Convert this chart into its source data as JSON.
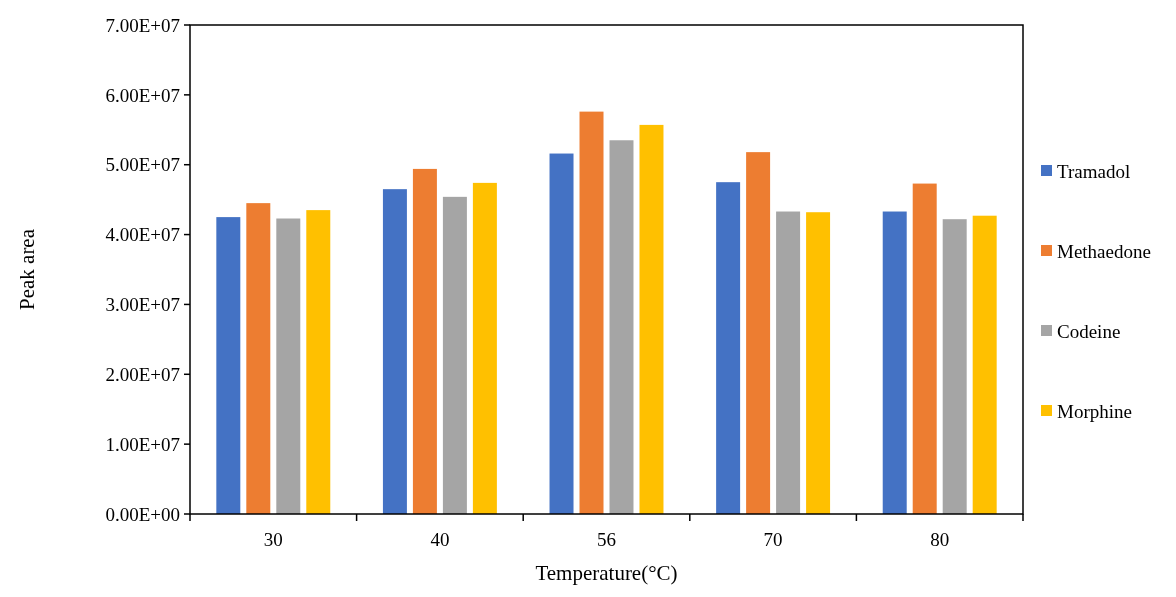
{
  "chart_data": {
    "type": "bar",
    "xlabel": "Temperature(°C)",
    "ylabel": "Peak area",
    "categories": [
      "30",
      "40",
      "56",
      "70",
      "80"
    ],
    "series": [
      {
        "name": "Tramadol",
        "color": "#4472c4",
        "values": [
          42500000,
          46500000,
          51600000,
          47500000,
          43300000
        ]
      },
      {
        "name": "Methaedone",
        "color": "#ed7d31",
        "values": [
          44500000,
          49400000,
          57600000,
          51800000,
          47300000
        ]
      },
      {
        "name": "Codeine",
        "color": "#a5a5a5",
        "values": [
          42300000,
          45400000,
          53500000,
          43300000,
          42200000
        ]
      },
      {
        "name": "Morphine",
        "color": "#ffc000",
        "values": [
          43500000,
          47400000,
          55700000,
          43200000,
          42700000
        ]
      }
    ],
    "ylim": [
      0,
      70000000
    ],
    "yticks": [
      {
        "value": 0,
        "label": "0.00E+00"
      },
      {
        "value": 10000000,
        "label": "1.00E+07"
      },
      {
        "value": 20000000,
        "label": "2.00E+07"
      },
      {
        "value": 30000000,
        "label": "3.00E+07"
      },
      {
        "value": 40000000,
        "label": "4.00E+07"
      },
      {
        "value": 50000000,
        "label": "5.00E+07"
      },
      {
        "value": 60000000,
        "label": "6.00E+07"
      },
      {
        "value": 70000000,
        "label": "7.00E+07"
      }
    ],
    "grid": false,
    "legend": "right"
  }
}
